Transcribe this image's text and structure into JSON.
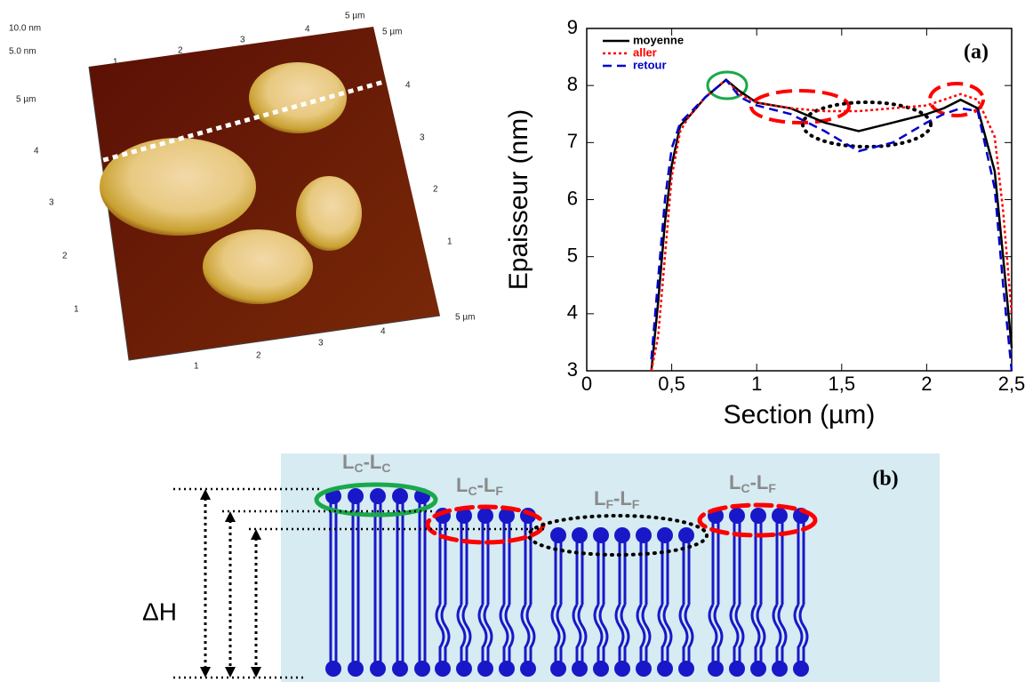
{
  "afm": {
    "labels": [
      "10.0 nm",
      "5.0 nm",
      "5 µm",
      "5 µm",
      "5 µm",
      "1",
      "2",
      "3",
      "4",
      "4",
      "3",
      "2",
      "1",
      "5 µm",
      "4",
      "3",
      "2",
      "1",
      "1",
      "2",
      "3",
      "4"
    ]
  },
  "chart_data": {
    "type": "line",
    "annotation": "(a)",
    "x_label": "Section (µm)",
    "y_label": "Epaisseur (nm)",
    "x": [
      0.38,
      0.42,
      0.46,
      0.5,
      0.55,
      0.6,
      0.7,
      0.82,
      0.9,
      1.0,
      1.2,
      1.4,
      1.6,
      1.8,
      2.0,
      2.1,
      2.2,
      2.3,
      2.4,
      2.45,
      2.5
    ],
    "series": [
      {
        "name": "moyenne",
        "color": "#000000",
        "dash": "solid",
        "values": [
          3,
          4.2,
          5.6,
          6.6,
          7.3,
          7.45,
          7.8,
          8.1,
          7.9,
          7.7,
          7.6,
          7.35,
          7.2,
          7.35,
          7.5,
          7.6,
          7.75,
          7.6,
          6.5,
          5.0,
          3.4
        ]
      },
      {
        "name": "aller",
        "color": "#ff0000",
        "dash": "dotted",
        "values": [
          3.0,
          3.6,
          5.0,
          6.4,
          7.2,
          7.45,
          7.8,
          8.1,
          7.85,
          7.7,
          7.6,
          7.55,
          7.55,
          7.6,
          7.65,
          7.75,
          7.85,
          7.75,
          7.1,
          5.8,
          4.0
        ]
      },
      {
        "name": "retour",
        "color": "#0000cc",
        "dash": "dashed",
        "values": [
          3.2,
          4.6,
          6.0,
          6.9,
          7.35,
          7.5,
          7.8,
          8.1,
          7.8,
          7.65,
          7.5,
          7.2,
          6.85,
          7.0,
          7.35,
          7.5,
          7.6,
          7.55,
          6.2,
          4.5,
          3.0
        ]
      }
    ],
    "xlim": [
      0,
      2.5
    ],
    "ylim": [
      3,
      9
    ],
    "xticks": [
      0,
      {
        "value": 0.5,
        "label": "0,5"
      },
      1,
      {
        "value": 1.5,
        "label": "1,5"
      },
      2,
      {
        "value": 2.5,
        "label": "2,5"
      }
    ],
    "yticks": [
      3,
      4,
      5,
      6,
      7,
      8,
      9
    ],
    "grid": false,
    "legend": "upper left"
  },
  "diagram": {
    "label": "(b)",
    "delta": "ΔH",
    "domains": [
      [
        "L",
        "C",
        "-L",
        "C"
      ],
      [
        "L",
        "C",
        "-L",
        "F"
      ],
      [
        "L",
        "F",
        "-L",
        "F"
      ],
      [
        "L",
        "C",
        "-L",
        "F"
      ]
    ]
  }
}
